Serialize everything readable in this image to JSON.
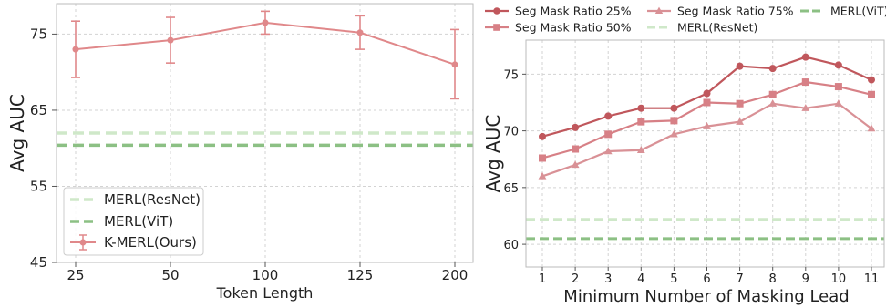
{
  "colors": {
    "kmerl": "#e0888a",
    "merl_resnet": "#cfe8c9",
    "merl_vit": "#8cc084",
    "ratio25": "#c0575c",
    "ratio50": "#d78086",
    "ratio75": "#d99196",
    "grid": "#d3d3d3",
    "frame": "#bbbbbb"
  },
  "chart_data": [
    {
      "type": "line",
      "xlabel": "Token Length",
      "ylabel": "Avg AUC",
      "categories": [
        "25",
        "50",
        "100",
        "125",
        "200"
      ],
      "ylim": [
        45,
        79
      ],
      "yticks": [
        "45",
        "55",
        "65",
        "75"
      ],
      "grid": true,
      "legend_position": "bottom-left",
      "series": [
        {
          "name": "K-MERL(Ours)",
          "values": [
            73.0,
            74.2,
            76.5,
            75.2,
            71.0
          ],
          "error_low": [
            69.3,
            71.2,
            75.0,
            73.0,
            66.5
          ],
          "error_high": [
            76.7,
            77.2,
            78.0,
            77.4,
            75.6
          ]
        }
      ],
      "baselines": [
        {
          "name": "MERL(ResNet)",
          "value": 62.0
        },
        {
          "name": "MERL(ViT)",
          "value": 60.4
        }
      ]
    },
    {
      "type": "line",
      "xlabel": "Minimum Number of Masking Lead",
      "ylabel": "Avg AUC",
      "categories": [
        "1",
        "2",
        "3",
        "4",
        "5",
        "6",
        "7",
        "8",
        "9",
        "10",
        "11"
      ],
      "ylim": [
        58,
        78
      ],
      "yticks": [
        "60",
        "65",
        "70",
        "75"
      ],
      "grid": true,
      "legend_position": "top",
      "series": [
        {
          "name": "Seg Mask Ratio 25%",
          "marker": "circle",
          "values": [
            69.5,
            70.3,
            71.3,
            72.0,
            72.0,
            73.3,
            75.7,
            75.5,
            76.5,
            75.8,
            74.5
          ]
        },
        {
          "name": "Seg Mask Ratio 50%",
          "marker": "square",
          "values": [
            67.6,
            68.4,
            69.7,
            70.8,
            70.9,
            72.5,
            72.4,
            73.2,
            74.3,
            73.9,
            73.2
          ]
        },
        {
          "name": "Seg Mask Ratio 75%",
          "marker": "triangle",
          "values": [
            66.0,
            67.0,
            68.2,
            68.3,
            69.7,
            70.4,
            70.8,
            72.4,
            72.0,
            72.4,
            70.2
          ]
        }
      ],
      "baselines": [
        {
          "name": "MERL(ResNet)",
          "value": 62.2
        },
        {
          "name": "MERL(ViT)",
          "value": 60.5
        }
      ]
    }
  ]
}
